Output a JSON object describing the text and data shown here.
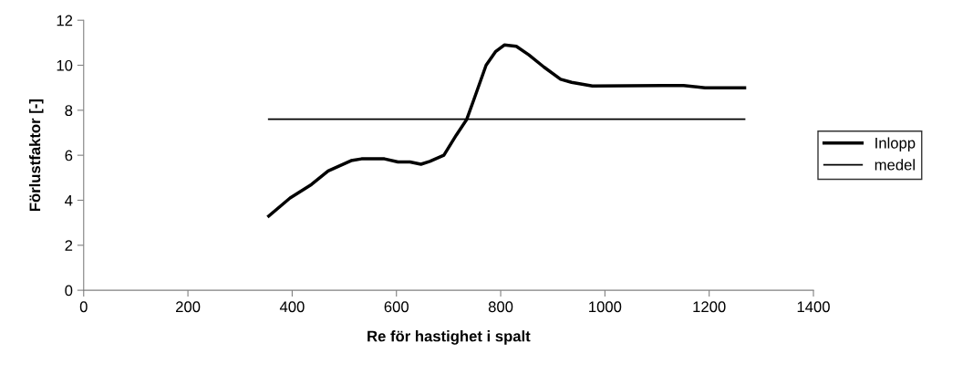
{
  "chart_data": {
    "type": "line",
    "xlabel": "Re för hastighet i spalt",
    "ylabel": "Förlustfaktor [-]",
    "xlim": [
      0,
      1400
    ],
    "xticks": [
      0,
      200,
      400,
      600,
      800,
      1000,
      1200,
      1400
    ],
    "ylim": [
      0,
      12
    ],
    "yticks": [
      0,
      2,
      4,
      6,
      8,
      10,
      12
    ],
    "grid": false,
    "legend": "right",
    "marker": "none",
    "series": [
      {
        "name": "Inlopp",
        "color": "#000000",
        "line_style": "solid",
        "x": [
          355,
          396,
          437,
          469,
          513,
          533,
          577,
          603,
          626,
          647,
          664,
          691,
          715,
          735,
          749,
          772,
          790,
          807,
          830,
          854,
          883,
          915,
          936,
          976,
          1110,
          1151,
          1192,
          1268
        ],
        "values": [
          3.3,
          4.1,
          4.7,
          5.3,
          5.76,
          5.84,
          5.84,
          5.7,
          5.7,
          5.6,
          5.73,
          6.0,
          6.9,
          7.6,
          8.5,
          10.0,
          10.6,
          10.9,
          10.84,
          10.46,
          9.92,
          9.38,
          9.24,
          9.08,
          9.1,
          9.1,
          9.0,
          9.0
        ]
      },
      {
        "name": "medel",
        "color": "#000000",
        "line_style": "solid",
        "x": [
          355,
          1268
        ],
        "values": [
          7.6,
          7.6
        ]
      }
    ]
  }
}
